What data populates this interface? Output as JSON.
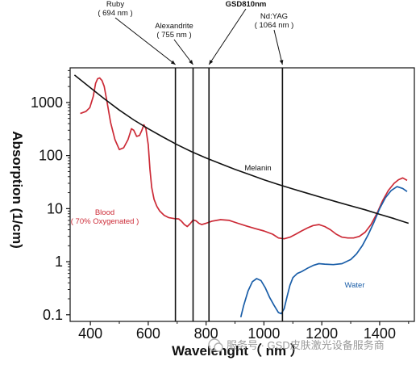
{
  "chart_data": {
    "type": "line",
    "xlabel": "Wavelenght（ nm ）",
    "ylabel": "Absorption  (1/cm)",
    "xlim": [
      330,
      1520
    ],
    "ylim": [
      0.075,
      4500
    ],
    "yscale": "log",
    "grid": false,
    "x_ticks": [
      400,
      600,
      800,
      1000,
      1200,
      1400
    ],
    "x_tick_labels": [
      "400",
      "600",
      "800",
      "1000",
      "1200",
      "1400"
    ],
    "y_ticks": [
      0.1,
      1,
      10,
      100,
      1000
    ],
    "y_tick_labels": [
      "0.1",
      "1",
      "10",
      "100",
      "1000"
    ],
    "series": [
      {
        "name": "Blood",
        "name_line2": "( 70% Oxygenated )",
        "color": "#cc2a36",
        "x": [
          365,
          385,
          398,
          410,
          418,
          425,
          432,
          440,
          448,
          458,
          470,
          485,
          500,
          515,
          530,
          542,
          550,
          560,
          570,
          578,
          585,
          592,
          600,
          606,
          612,
          620,
          630,
          640,
          655,
          670,
          690,
          705,
          715,
          725,
          735,
          745,
          755,
          765,
          775,
          785,
          800,
          820,
          850,
          880,
          910,
          940,
          970,
          1000,
          1030,
          1050,
          1070,
          1090,
          1110,
          1130,
          1150,
          1170,
          1190,
          1210,
          1230,
          1250,
          1270,
          1290,
          1310,
          1330,
          1350,
          1370,
          1390,
          1410,
          1430,
          1450,
          1465,
          1480,
          1495
        ],
        "y": [
          620,
          680,
          800,
          1300,
          2300,
          2800,
          2900,
          2600,
          2000,
          1000,
          420,
          200,
          130,
          140,
          200,
          320,
          300,
          230,
          240,
          300,
          380,
          320,
          160,
          55,
          25,
          15,
          11,
          9,
          7.5,
          6.8,
          6.5,
          6.4,
          5.8,
          5.0,
          4.6,
          5.2,
          6.1,
          5.9,
          5.3,
          5.0,
          5.3,
          5.8,
          6.2,
          6.0,
          5.3,
          4.7,
          4.2,
          3.8,
          3.3,
          2.8,
          2.7,
          2.9,
          3.3,
          3.8,
          4.3,
          4.8,
          5.0,
          4.6,
          4.0,
          3.3,
          2.9,
          2.8,
          2.8,
          3.0,
          3.6,
          5.0,
          8.0,
          14,
          22,
          30,
          35,
          38,
          34
        ]
      },
      {
        "name": "Water",
        "color": "#1a5ea8",
        "x": [
          920,
          930,
          945,
          960,
          975,
          990,
          1005,
          1020,
          1035,
          1050,
          1060,
          1070,
          1080,
          1090,
          1100,
          1115,
          1130,
          1150,
          1170,
          1190,
          1210,
          1240,
          1270,
          1300,
          1320,
          1340,
          1360,
          1380,
          1400,
          1420,
          1440,
          1460,
          1480,
          1495
        ],
        "y": [
          0.09,
          0.15,
          0.28,
          0.42,
          0.48,
          0.44,
          0.32,
          0.21,
          0.15,
          0.11,
          0.105,
          0.13,
          0.22,
          0.36,
          0.5,
          0.6,
          0.65,
          0.75,
          0.85,
          0.92,
          0.9,
          0.88,
          0.92,
          1.1,
          1.4,
          2.0,
          3.2,
          5.5,
          10,
          16,
          22,
          26,
          24,
          21
        ]
      },
      {
        "name": "Melanin",
        "color": "#111111",
        "x": [
          345,
          400,
          450,
          500,
          550,
          600,
          650,
          700,
          750,
          800,
          850,
          900,
          950,
          1000,
          1050,
          1100,
          1150,
          1200,
          1250,
          1300,
          1350,
          1400,
          1450,
          1500
        ],
        "y": [
          3300,
          1900,
          1150,
          720,
          470,
          320,
          225,
          160,
          118,
          90,
          70,
          55,
          44,
          35,
          28.5,
          23.5,
          19.5,
          16.2,
          13.5,
          11.3,
          9.5,
          7.8,
          6.5,
          5.3
        ]
      }
    ],
    "vlines": [
      {
        "x": 694,
        "label": "Ruby",
        "sublabel": "( 694 nm )",
        "bold": false
      },
      {
        "x": 755,
        "label": "Alexandrite",
        "sublabel": "( 755 nm )",
        "bold": false
      },
      {
        "x": 810,
        "label": "GSD810nm",
        "sublabel": "",
        "bold": true
      },
      {
        "x": 1064,
        "label": "Nd:YAG",
        "sublabel": "( 1064 nm )",
        "bold": false
      }
    ],
    "annotations": {
      "blood_line1": "Blood",
      "blood_line2": "( 70% Oxygenated )",
      "water": "Water",
      "melanin": "Melanin"
    }
  },
  "watermark": "服务号 · GSD皮肤激光设备服务商"
}
